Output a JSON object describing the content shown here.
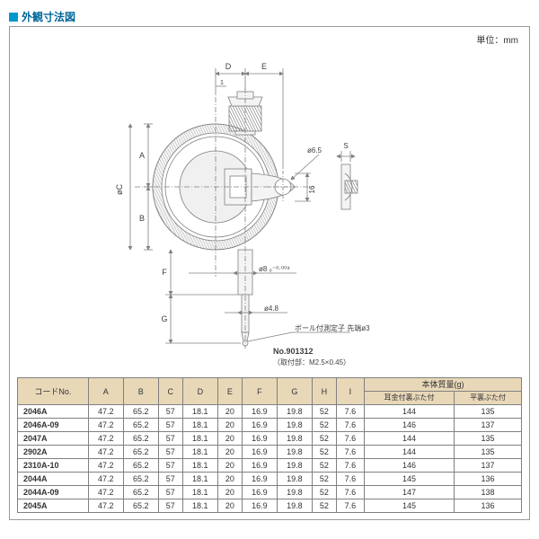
{
  "header": {
    "title": "外観寸法図"
  },
  "unit_label": "単位：mm",
  "diagram": {
    "labels": {
      "A": "A",
      "B": "B",
      "C": "øC",
      "D": "D",
      "E": "E",
      "F": "F",
      "G": "G",
      "s": "S",
      "dia_65": "ø6.5",
      "hole_t": "16",
      "t1": "1",
      "dia_8": "ø8 ₀⁻⁰·⁰⁰⁹",
      "dia_48": "ø4.8",
      "probe_note": "ボール付測定子 先端ø3",
      "model_no": "No.901312",
      "mount_spec": "（取付部：M2.5×0.45）"
    }
  },
  "table": {
    "headers": {
      "code": "コードNo.",
      "cols": [
        "A",
        "B",
        "C",
        "D",
        "E",
        "F",
        "G",
        "H",
        "I"
      ],
      "mass_group": "本体質量(g)",
      "mass1": "耳金付裏ぶた付",
      "mass2": "平裏ぶた付"
    },
    "rows": [
      {
        "code": "2046A",
        "v": [
          "47.2",
          "65.2",
          "57",
          "18.1",
          "20",
          "16.9",
          "19.8",
          "52",
          "7.6"
        ],
        "m": [
          "144",
          "135"
        ]
      },
      {
        "code": "2046A-09",
        "v": [
          "47.2",
          "65.2",
          "57",
          "18.1",
          "20",
          "16.9",
          "19.8",
          "52",
          "7.6"
        ],
        "m": [
          "146",
          "137"
        ]
      },
      {
        "code": "2047A",
        "v": [
          "47.2",
          "65.2",
          "57",
          "18.1",
          "20",
          "16.9",
          "19.8",
          "52",
          "7.6"
        ],
        "m": [
          "144",
          "135"
        ]
      },
      {
        "code": "2902A",
        "v": [
          "47.2",
          "65.2",
          "57",
          "18.1",
          "20",
          "16.9",
          "19.8",
          "52",
          "7.6"
        ],
        "m": [
          "144",
          "135"
        ]
      },
      {
        "code": "2310A-10",
        "v": [
          "47.2",
          "65.2",
          "57",
          "18.1",
          "20",
          "16.9",
          "19.8",
          "52",
          "7.6"
        ],
        "m": [
          "146",
          "137"
        ]
      },
      {
        "code": "2044A",
        "v": [
          "47.2",
          "65.2",
          "57",
          "18.1",
          "20",
          "16.9",
          "19.8",
          "52",
          "7.6"
        ],
        "m": [
          "145",
          "136"
        ]
      },
      {
        "code": "2044A-09",
        "v": [
          "47.2",
          "65.2",
          "57",
          "18.1",
          "20",
          "16.9",
          "19.8",
          "52",
          "7.6"
        ],
        "m": [
          "147",
          "138"
        ]
      },
      {
        "code": "2045A",
        "v": [
          "47.2",
          "65.2",
          "57",
          "18.1",
          "20",
          "16.9",
          "19.8",
          "52",
          "7.6"
        ],
        "m": [
          "145",
          "136"
        ]
      }
    ]
  },
  "colors": {
    "accent": "#0099cc",
    "header_bg": "#e8d8b8",
    "line": "#808080",
    "diagram_stroke": "#808080",
    "diagram_fill": "#f4f4f4"
  }
}
